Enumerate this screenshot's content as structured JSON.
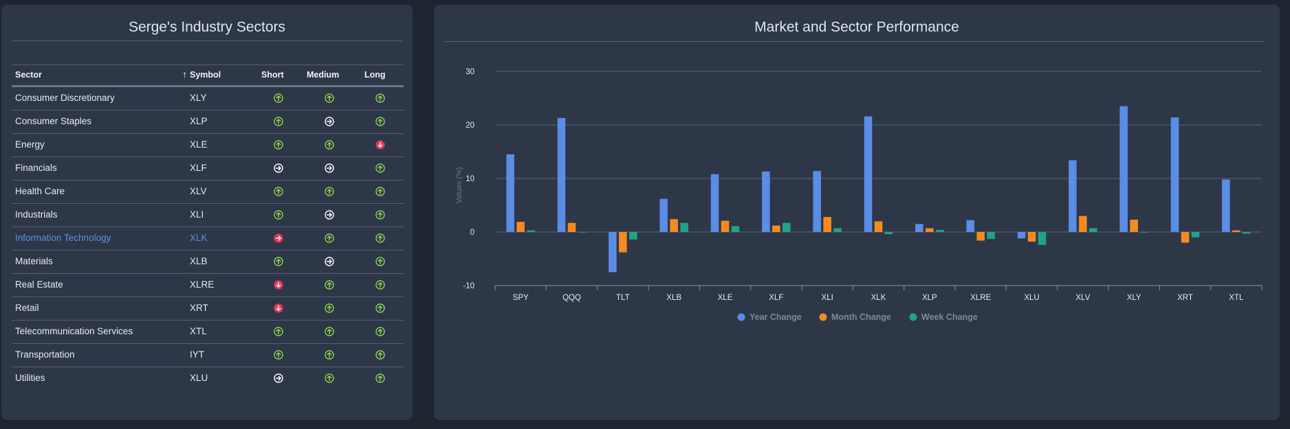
{
  "left_panel": {
    "title": "Serge's Industry Sectors",
    "columns": {
      "sector": "Sector",
      "sort_arrow": "↑",
      "symbol": "Symbol",
      "short": "Short",
      "medium": "Medium",
      "long": "Long"
    },
    "rows": [
      {
        "sector": "Consumer Discretionary",
        "symbol": "XLY",
        "short": "up",
        "medium": "up",
        "long": "up"
      },
      {
        "sector": "Consumer Staples",
        "symbol": "XLP",
        "short": "up",
        "medium": "right",
        "long": "up"
      },
      {
        "sector": "Energy",
        "symbol": "XLE",
        "short": "up",
        "medium": "up",
        "long": "down"
      },
      {
        "sector": "Financials",
        "symbol": "XLF",
        "short": "right",
        "medium": "right",
        "long": "up"
      },
      {
        "sector": "Health Care",
        "symbol": "XLV",
        "short": "up",
        "medium": "up",
        "long": "up"
      },
      {
        "sector": "Industrials",
        "symbol": "XLI",
        "short": "up",
        "medium": "right",
        "long": "up"
      },
      {
        "sector": "Information Technology",
        "symbol": "XLK",
        "short": "right-red",
        "medium": "up",
        "long": "up",
        "highlight": true
      },
      {
        "sector": "Materials",
        "symbol": "XLB",
        "short": "up",
        "medium": "right",
        "long": "up"
      },
      {
        "sector": "Real Estate",
        "symbol": "XLRE",
        "short": "down",
        "medium": "up",
        "long": "up"
      },
      {
        "sector": "Retail",
        "symbol": "XRT",
        "short": "down",
        "medium": "up",
        "long": "up"
      },
      {
        "sector": "Telecommunication Services",
        "symbol": "XTL",
        "short": "up",
        "medium": "up",
        "long": "up"
      },
      {
        "sector": "Transportation",
        "symbol": "IYT",
        "short": "up",
        "medium": "up",
        "long": "up"
      },
      {
        "sector": "Utilities",
        "symbol": "XLU",
        "short": "right",
        "medium": "up",
        "long": "up"
      }
    ],
    "icon_names": {
      "up": "arrow-up-circle-icon",
      "right": "arrow-right-circle-icon",
      "down": "arrow-down-circle-icon",
      "right-red": "arrow-right-circle-icon"
    },
    "colors": {
      "up": "#8fd24a",
      "right": "#ffffff",
      "down": "#e8335a",
      "right-red": "#e8335a",
      "highlight": "#5c8fe6"
    }
  },
  "right_panel": {
    "title": "Market and Sector Performance"
  },
  "chart_data": {
    "type": "bar",
    "title": "Market and Sector Performance",
    "ylabel": "Values (%)",
    "xlabel": "",
    "ylim": [
      -10,
      30
    ],
    "yticks": [
      -10,
      0,
      10,
      20,
      30
    ],
    "grid": true,
    "legend": "bottom",
    "categories": [
      "SPY",
      "QQQ",
      "TLT",
      "XLB",
      "XLE",
      "XLF",
      "XLI",
      "XLK",
      "XLP",
      "XLRE",
      "XLU",
      "XLV",
      "XLY",
      "XRT",
      "XTL"
    ],
    "series": [
      {
        "name": "Year Change",
        "color": "#5b8de6",
        "values": [
          14.5,
          21.3,
          -7.5,
          6.2,
          10.8,
          11.3,
          11.4,
          21.6,
          1.5,
          2.2,
          -1.2,
          13.4,
          23.5,
          21.4,
          9.8
        ]
      },
      {
        "name": "Month Change",
        "color": "#f58b1f",
        "values": [
          1.9,
          1.7,
          -3.8,
          2.4,
          2.1,
          1.2,
          2.8,
          2.0,
          0.7,
          -1.6,
          -1.8,
          3.0,
          2.3,
          -2.0,
          0.3
        ]
      },
      {
        "name": "Week Change",
        "color": "#1fa38a",
        "values": [
          0.3,
          -0.1,
          -1.4,
          1.7,
          1.1,
          1.7,
          0.7,
          -0.4,
          0.4,
          -1.3,
          -2.4,
          0.7,
          0.0,
          -1.0,
          -0.3
        ]
      }
    ]
  }
}
